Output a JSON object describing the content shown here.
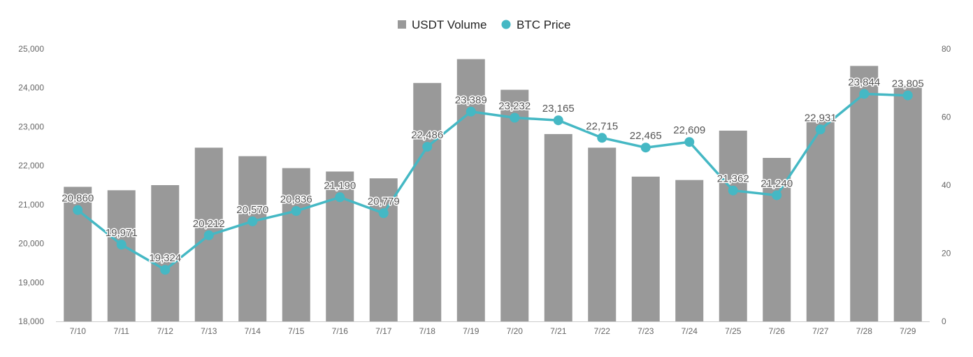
{
  "chart_data": {
    "type": "bar",
    "categories": [
      "7/10",
      "7/11",
      "7/12",
      "7/13",
      "7/14",
      "7/15",
      "7/16",
      "7/17",
      "7/18",
      "7/19",
      "7/20",
      "7/21",
      "7/22",
      "7/23",
      "7/24",
      "7/25",
      "7/26",
      "7/27",
      "7/28",
      "7/29"
    ],
    "series": [
      {
        "name": "USDT Volume",
        "type": "bar",
        "axis": "right",
        "color": "#999999",
        "values": [
          39.5,
          38.5,
          40,
          51,
          48.5,
          45,
          44,
          42,
          70,
          77,
          68,
          55,
          51,
          42.5,
          41.5,
          56,
          48,
          59,
          75,
          69.5
        ]
      },
      {
        "name": "BTC Price",
        "type": "line",
        "axis": "left",
        "color": "#45b8c4",
        "values": [
          20860,
          19971,
          19324,
          20212,
          20570,
          20836,
          21190,
          20779,
          22486,
          23389,
          23232,
          23165,
          22715,
          22465,
          22609,
          21362,
          21240,
          22931,
          23844,
          23805
        ],
        "labels": [
          "20,860",
          "19,971",
          "19,324",
          "20,212",
          "20,570",
          "20,836",
          "21,190",
          "20,779",
          "22,486",
          "23,389",
          "23,232",
          "23,165",
          "22,715",
          "22,465",
          "22,609",
          "21,362",
          "21,240",
          "22,931",
          "23,844",
          "23,805"
        ]
      }
    ],
    "y_left": {
      "lim": [
        18000,
        25000
      ],
      "ticks": [
        18000,
        19000,
        20000,
        21000,
        22000,
        23000,
        24000,
        25000
      ],
      "tick_labels": [
        "18,000",
        "19,000",
        "20,000",
        "21,000",
        "22,000",
        "23,000",
        "24,000",
        "25,000"
      ]
    },
    "y_right": {
      "lim": [
        0,
        80
      ],
      "ticks": [
        0,
        20,
        40,
        60,
        80
      ],
      "tick_labels": [
        "0",
        "20",
        "40",
        "60",
        "80"
      ]
    },
    "legend": {
      "position": "top-center",
      "items": [
        "USDT Volume",
        "BTC Price"
      ]
    },
    "grid": false
  }
}
